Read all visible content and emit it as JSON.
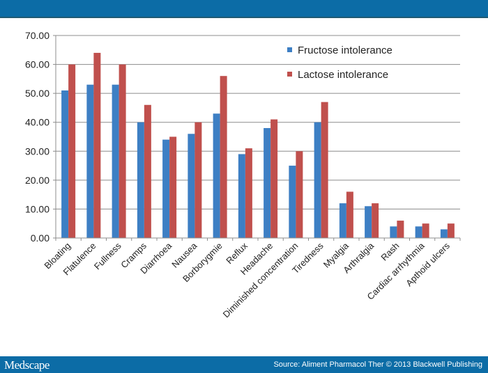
{
  "footer": {
    "logo": "Medscape",
    "source": "Source: Aliment Pharmacol Ther © 2013 Blackwell Publishing"
  },
  "chart_data": {
    "type": "bar",
    "categories": [
      "Bloating",
      "Flatulence",
      "Fullness",
      "Cramps",
      "Diarrhoea",
      "Nausea",
      "Borborygmie",
      "Reflux",
      "Headache",
      "Diminished concentration",
      "Tiredness",
      "Myalgia",
      "Arthralgia",
      "Rash",
      "Cardiac arrhythmia",
      "Apthoid ulcers"
    ],
    "series": [
      {
        "name": "Fructose intolerance",
        "color": "#3d7fc4",
        "values": [
          51,
          53,
          53,
          40,
          34,
          36,
          43,
          29,
          38,
          25,
          40,
          12,
          11,
          4,
          4,
          3
        ]
      },
      {
        "name": "Lactose intolerance",
        "color": "#c0504d",
        "values": [
          60,
          64,
          60,
          46,
          35,
          40,
          56,
          31,
          41,
          30,
          47,
          16,
          12,
          6,
          5,
          5
        ]
      }
    ],
    "yticks": [
      "0.00",
      "10.00",
      "20.00",
      "30.00",
      "40.00",
      "50.00",
      "60.00",
      "70.00"
    ],
    "ylim": [
      0,
      70
    ],
    "grid": true,
    "legend": "top-right"
  }
}
